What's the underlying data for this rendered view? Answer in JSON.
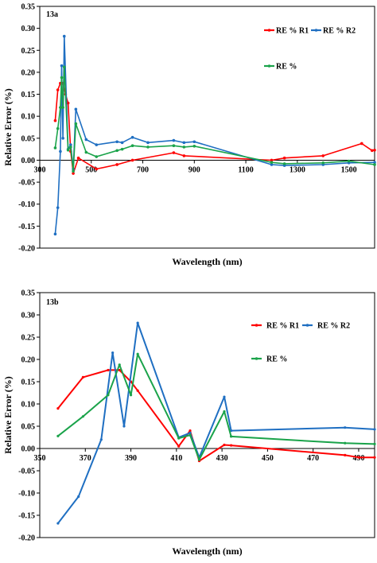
{
  "chart_data": [
    {
      "type": "line",
      "panel_label": "13a",
      "xlabel": "Wavelength (nm)",
      "ylabel": "Relative  Error (%)",
      "xlim": [
        300,
        1600
      ],
      "ylim": [
        -0.2,
        0.35
      ],
      "x_ticks": [
        300,
        500,
        700,
        900,
        1100,
        1300,
        1500
      ],
      "x_tick_labels": [
        "300",
        "500",
        "700",
        "900",
        "1100",
        "1300",
        "1500"
      ],
      "y_ticks": [
        -0.2,
        -0.15,
        -0.1,
        -0.05,
        0.0,
        0.05,
        0.1,
        0.15,
        0.2,
        0.25,
        0.3,
        0.35
      ],
      "y_tick_labels": [
        "-0.20",
        "-0.15",
        "-0.10",
        "-0.05",
        "0.00",
        "0.05",
        "0.10",
        "0.15",
        "0.20",
        "0.25",
        "0.30",
        "0.35"
      ],
      "grid": false,
      "series": [
        {
          "name": "RE % R1",
          "color": "#ff0000",
          "x": [
            360,
            370,
            380,
            390,
            400,
            410,
            420,
            430,
            450,
            520,
            600,
            660,
            820,
            860,
            1200,
            1250,
            1400,
            1550,
            1590,
            1600
          ],
          "y": [
            0.09,
            0.16,
            0.175,
            0.175,
            0.15,
            0.13,
            0.02,
            -0.03,
            0.005,
            -0.02,
            -0.01,
            0.0,
            0.017,
            0.01,
            0.0,
            0.005,
            0.01,
            0.038,
            0.022,
            0.023
          ]
        },
        {
          "name": "RE % R2",
          "color": "#1f6fc2",
          "x": [
            360,
            370,
            380,
            385,
            390,
            395,
            410,
            420,
            430,
            440,
            480,
            520,
            600,
            620,
            660,
            720,
            820,
            860,
            900,
            1200,
            1250,
            1400,
            1500,
            1600
          ],
          "y": [
            -0.168,
            -0.108,
            0.02,
            0.215,
            0.05,
            0.282,
            0.025,
            0.035,
            -0.02,
            0.116,
            0.047,
            0.035,
            0.042,
            0.04,
            0.052,
            0.04,
            0.045,
            0.04,
            0.042,
            -0.01,
            -0.012,
            -0.01,
            -0.006,
            -0.005
          ]
        },
        {
          "name": "RE %",
          "color": "#1aa34a",
          "x": [
            360,
            370,
            380,
            385,
            390,
            395,
            410,
            420,
            430,
            440,
            480,
            520,
            600,
            620,
            660,
            720,
            820,
            860,
            900,
            1200,
            1250,
            1400,
            1500,
            1600
          ],
          "y": [
            0.028,
            0.072,
            0.12,
            0.188,
            0.12,
            0.212,
            0.023,
            0.03,
            -0.025,
            0.083,
            0.018,
            0.008,
            0.022,
            0.025,
            0.033,
            0.03,
            0.033,
            0.03,
            0.032,
            -0.005,
            -0.008,
            -0.006,
            -0.002,
            -0.01
          ]
        }
      ]
    },
    {
      "type": "line",
      "panel_label": "13b",
      "xlabel": "Wavelength (nm)",
      "ylabel": "Relative  Error (%)",
      "xlim": [
        350,
        497
      ],
      "ylim": [
        -0.2,
        0.35
      ],
      "x_ticks": [
        350,
        370,
        390,
        410,
        430,
        450,
        470,
        490
      ],
      "x_tick_labels": [
        "350",
        "370",
        "390",
        "410",
        "430",
        "450",
        "470",
        "490"
      ],
      "y_ticks": [
        -0.2,
        -0.15,
        -0.1,
        -0.05,
        0.0,
        0.05,
        0.1,
        0.15,
        0.2,
        0.25,
        0.3,
        0.35
      ],
      "y_tick_labels": [
        "-0.20",
        "-0.15",
        "-0.10",
        "-0.05",
        "0.00",
        "0.05",
        "0.10",
        "0.15",
        "0.20",
        "0.25",
        "0.30",
        "0.35"
      ],
      "grid": false,
      "series": [
        {
          "name": "RE % R1",
          "color": "#ff0000",
          "x": [
            358,
            369,
            380,
            385,
            390,
            393,
            411,
            416,
            420,
            431,
            434,
            484,
            490,
            497
          ],
          "y": [
            0.09,
            0.16,
            0.176,
            0.176,
            0.15,
            0.13,
            0.005,
            0.04,
            -0.028,
            0.008,
            0.007,
            -0.015,
            -0.02,
            -0.02
          ]
        },
        {
          "name": "RE % R2",
          "color": "#1f6fc2",
          "x": [
            358,
            367,
            377,
            382,
            387,
            393,
            411,
            416,
            420,
            431,
            434,
            484,
            497
          ],
          "y": [
            -0.168,
            -0.108,
            0.02,
            0.215,
            0.05,
            0.282,
            0.025,
            0.035,
            -0.02,
            0.116,
            0.04,
            0.047,
            0.043
          ]
        },
        {
          "name": "RE %",
          "color": "#1aa34a",
          "x": [
            358,
            369,
            380,
            385,
            390,
            393,
            411,
            416,
            420,
            431,
            434,
            484,
            497
          ],
          "y": [
            0.028,
            0.072,
            0.12,
            0.188,
            0.12,
            0.212,
            0.023,
            0.03,
            -0.025,
            0.083,
            0.027,
            0.012,
            0.01
          ]
        }
      ]
    }
  ]
}
